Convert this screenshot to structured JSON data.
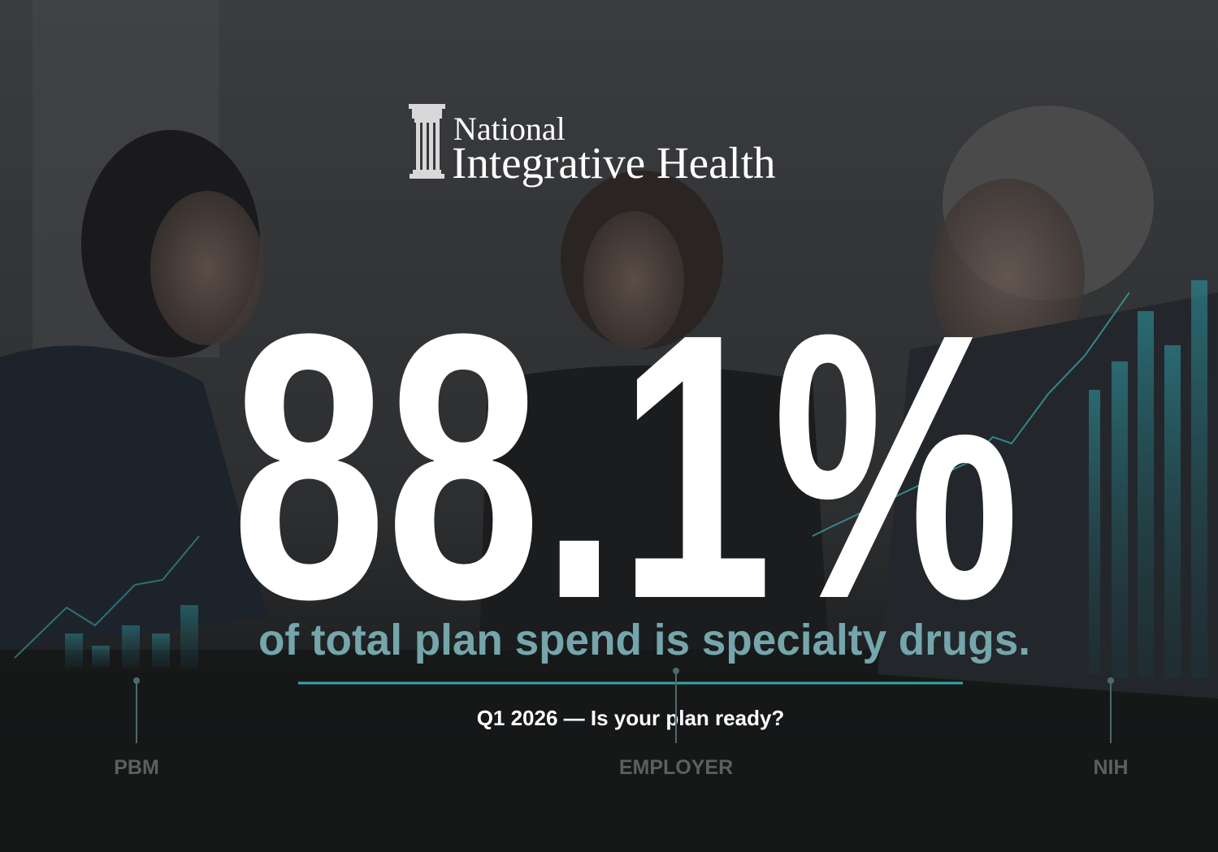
{
  "logo": {
    "line1": "National",
    "line2": "Integrative Health"
  },
  "headline": "88.1%",
  "subheadline": "of total plan spend is specialty drugs.",
  "tagline": "Q1 2026 — Is your plan ready?",
  "labels": [
    "PBM",
    "EMPLOYER",
    "NIH"
  ]
}
